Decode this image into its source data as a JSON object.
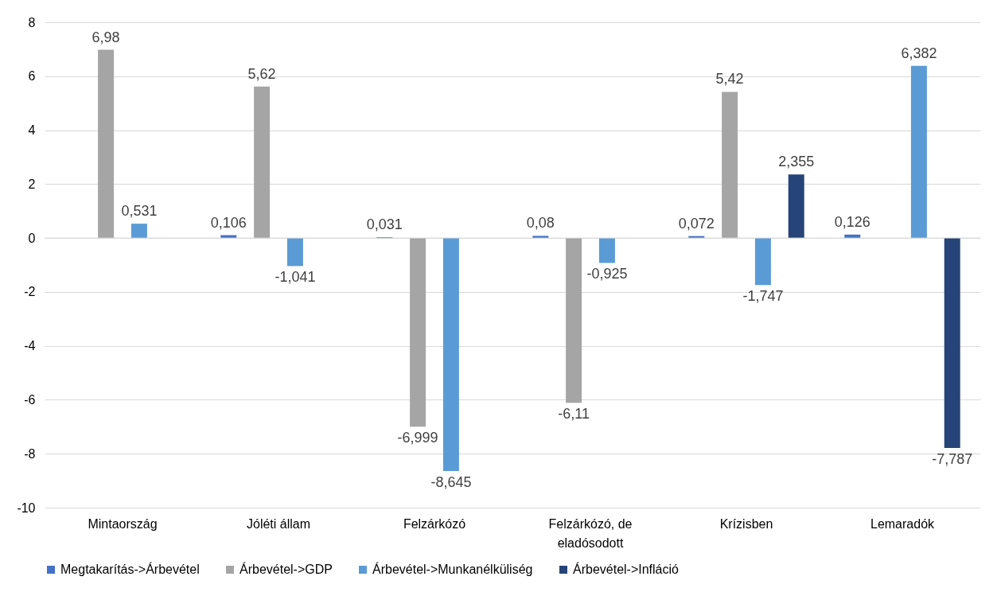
{
  "chart_data": {
    "type": "bar",
    "categories": [
      "Mintaország",
      "Jóléti állam",
      "Felzárkózó",
      "Felzárkózó, de\neladósodott",
      "Krízisben",
      "Lemaradók"
    ],
    "series": [
      {
        "name": "Megtakarítás->Árbevétel",
        "color": "#4472c4",
        "values": [
          null,
          0.106,
          0.031,
          0.08,
          0.072,
          0.126
        ],
        "value_labels": [
          null,
          "0,106",
          "0,031",
          "0,08",
          "0,072",
          "0,126"
        ]
      },
      {
        "name": "Árbevétel->GDP",
        "color": "#a5a5a5",
        "values": [
          6.98,
          5.62,
          -6.999,
          -6.11,
          5.42,
          null
        ],
        "value_labels": [
          "6,98",
          "5,62",
          "-6,999",
          "-6,11",
          "5,42",
          null
        ]
      },
      {
        "name": "Árbevétel->Munkanélküliség",
        "color": "#5b9bd5",
        "values": [
          0.531,
          -1.041,
          -8.645,
          -0.925,
          -1.747,
          6.382
        ],
        "value_labels": [
          "0,531",
          "-1,041",
          "-8,645",
          "-0,925",
          "-1,747",
          "6,382"
        ]
      },
      {
        "name": "Árbevétel->Infláció",
        "color": "#264478",
        "values": [
          null,
          null,
          null,
          null,
          2.355,
          -7.787
        ],
        "value_labels": [
          null,
          null,
          null,
          null,
          "2,355",
          "-7,787"
        ]
      }
    ],
    "ylim": [
      -10,
      8
    ],
    "yticks": [
      -10,
      -8,
      -6,
      -4,
      -2,
      0,
      2,
      4,
      6,
      8
    ],
    "grid": "y",
    "legend": "bottom"
  }
}
